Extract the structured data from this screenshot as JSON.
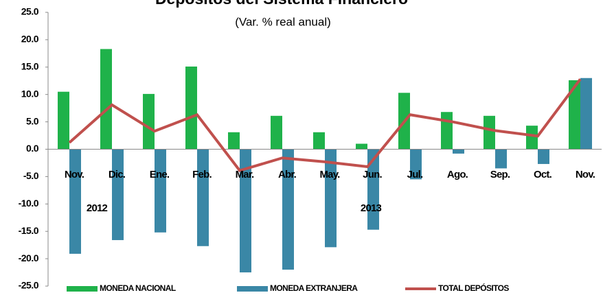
{
  "chart_data": {
    "type": "bar",
    "title": "Depósitos del Sistema Financiero",
    "subtitle": "(Var. % real anual)",
    "categories": [
      "Nov.",
      "Dic.",
      "Ene.",
      "Feb.",
      "Mar.",
      "Abr.",
      "May.",
      "Jun.",
      "Jul.",
      "Ago.",
      "Sep.",
      "Oct.",
      "Nov."
    ],
    "annotations": [
      "2012",
      "2013"
    ],
    "series": [
      {
        "name": "MONEDA NACIONAL",
        "color": "#1fb24a",
        "values": [
          10.5,
          18.3,
          10.1,
          15.1,
          3.1,
          6.1,
          3.1,
          1.0,
          10.3,
          6.8,
          6.1,
          4.3,
          12.6
        ]
      },
      {
        "name": "MONEDA EXTRANJERA",
        "color": "#3a87a6",
        "values": [
          -19.1,
          -16.6,
          -15.2,
          -17.7,
          -22.5,
          -22.0,
          -17.9,
          -14.7,
          -5.5,
          -0.8,
          -3.5,
          -2.7,
          13.0
        ]
      },
      {
        "name": "TOTAL  DEPÓSITOS",
        "color": "#c0504d",
        "type": "line",
        "values": [
          1.2,
          8.1,
          3.3,
          6.3,
          -3.9,
          -1.6,
          -2.3,
          -3.2,
          6.3,
          5.0,
          3.4,
          2.4,
          12.8
        ]
      }
    ],
    "ylim": [
      -25,
      25
    ],
    "yticks": [
      {
        "value": 25,
        "label": "25.0"
      },
      {
        "value": 20,
        "label": "20.0"
      },
      {
        "value": 15,
        "label": "15.0"
      },
      {
        "value": 10,
        "label": "10.0"
      },
      {
        "value": 5,
        "label": "5.0"
      },
      {
        "value": 0,
        "label": "0.0"
      },
      {
        "value": -5,
        "label": "-5.0"
      },
      {
        "value": -10,
        "label": "-10.0"
      },
      {
        "value": -15,
        "label": "-15.0"
      },
      {
        "value": -20,
        "label": "-20.0"
      },
      {
        "value": -25,
        "label": "-25.0"
      }
    ],
    "legend": "bottom",
    "grid": false
  }
}
